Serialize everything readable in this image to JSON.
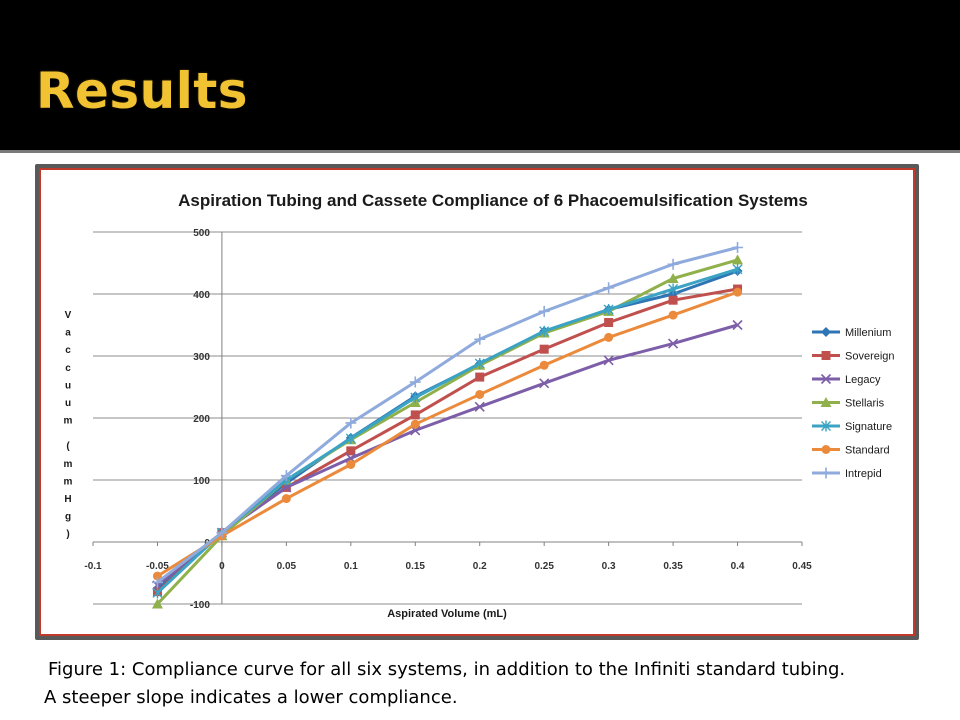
{
  "slide": {
    "title": "Results",
    "caption_line1": "Figure 1: Compliance curve for all six systems, in addition to the Infiniti standard tubing.",
    "caption_line2": "A steeper slope indicates a lower compliance."
  },
  "chart_data": {
    "type": "line",
    "title": "Aspiration Tubing and Cassete Compliance of 6 Phacoemulsification Systems",
    "xlabel": "Aspirated Volume (mL)",
    "ylabel": "Vaccuum (mmHg)",
    "xlim": [
      -0.1,
      0.45
    ],
    "ylim": [
      -100,
      500
    ],
    "x_ticks": [
      "-0.1",
      "-0.05",
      "0",
      "0.05",
      "0.1",
      "0.15",
      "0.2",
      "0.25",
      "0.3",
      "0.35",
      "0.4",
      "0.45"
    ],
    "y_ticks": [
      "-100",
      "0",
      "100",
      "200",
      "300",
      "400",
      "500"
    ],
    "grid": "horizontal",
    "legend_position": "right",
    "series": [
      {
        "name": "Millenium",
        "color": "#2e75b6",
        "marker": "diamond",
        "x": [
          -0.05,
          0,
          0.05,
          0.1,
          0.15,
          0.2,
          0.25,
          0.3,
          0.35,
          0.4
        ],
        "y": [
          -75,
          15,
          95,
          168,
          235,
          287,
          340,
          375,
          400,
          437
        ]
      },
      {
        "name": "Sovereign",
        "color": "#c0504d",
        "marker": "square",
        "x": [
          -0.05,
          0,
          0.05,
          0.1,
          0.15,
          0.2,
          0.25,
          0.3,
          0.35,
          0.4
        ],
        "y": [
          -80,
          15,
          88,
          147,
          205,
          266,
          311,
          354,
          390,
          408
        ]
      },
      {
        "name": "Legacy",
        "color": "#7d5ea8",
        "marker": "x",
        "x": [
          -0.05,
          0,
          0.05,
          0.1,
          0.15,
          0.2,
          0.25,
          0.3,
          0.35,
          0.4
        ],
        "y": [
          -70,
          15,
          88,
          135,
          180,
          218,
          256,
          293,
          320,
          350
        ]
      },
      {
        "name": "Stellaris",
        "color": "#8fb04a",
        "marker": "triangle",
        "x": [
          -0.05,
          0,
          0.05,
          0.1,
          0.15,
          0.2,
          0.25,
          0.3,
          0.35,
          0.4
        ],
        "y": [
          -100,
          10,
          100,
          165,
          225,
          285,
          337,
          372,
          425,
          455
        ]
      },
      {
        "name": "Signature",
        "color": "#3ba3c4",
        "marker": "star",
        "x": [
          -0.05,
          0,
          0.05,
          0.1,
          0.15,
          0.2,
          0.25,
          0.3,
          0.35,
          0.4
        ],
        "y": [
          -82,
          15,
          100,
          167,
          233,
          288,
          340,
          375,
          408,
          440
        ]
      },
      {
        "name": "Standard",
        "color": "#ec8a3b",
        "marker": "circle",
        "x": [
          -0.05,
          0,
          0.05,
          0.1,
          0.15,
          0.2,
          0.25,
          0.3,
          0.35,
          0.4
        ],
        "y": [
          -55,
          10,
          70,
          125,
          190,
          238,
          285,
          330,
          366,
          403
        ]
      },
      {
        "name": "Intrepid",
        "color": "#8faadc",
        "marker": "plus",
        "x": [
          -0.05,
          0,
          0.05,
          0.1,
          0.15,
          0.2,
          0.25,
          0.3,
          0.35,
          0.4
        ],
        "y": [
          -65,
          15,
          107,
          192,
          258,
          327,
          372,
          410,
          448,
          475
        ]
      }
    ]
  }
}
